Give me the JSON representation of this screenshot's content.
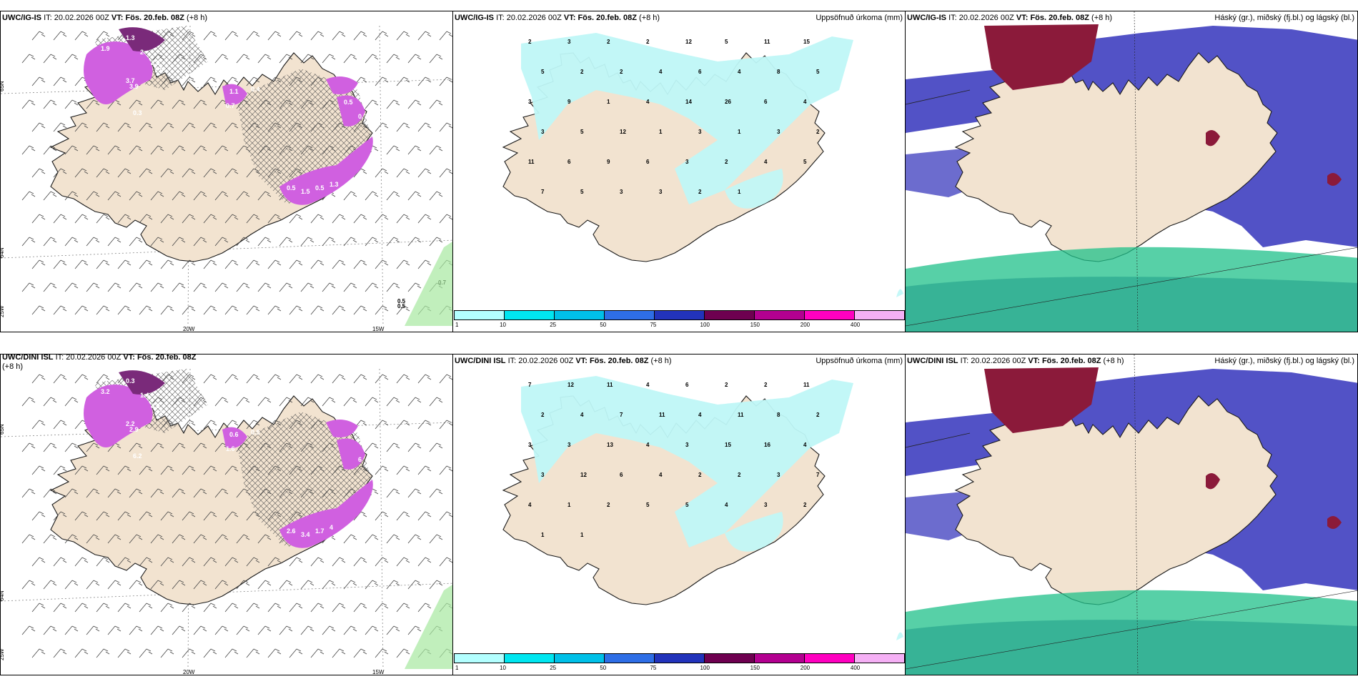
{
  "panels": [
    {
      "model": "UWC/IG-IS",
      "it_label": "IT:",
      "it": "20.02.2026 00Z",
      "vt_label": "VT:",
      "vt": "Fös. 20.feb. 08Z",
      "lead": "(+8 h)",
      "lat_labels": [
        "65N",
        "64N",
        "25W"
      ],
      "lon_labels": [
        "20W",
        "15W"
      ],
      "sea_values": [
        "0.7",
        "0.5",
        "0.5"
      ],
      "cloud_values": [
        "1.3",
        "1.9",
        "2",
        "2.2",
        "1.9",
        "3.7",
        "3.9",
        "0.3",
        "1.1",
        "0.7",
        "0.4",
        "0.5",
        "1.5",
        "0.5",
        "1.3",
        "0.7",
        "0.5"
      ]
    },
    {
      "model": "UWC/IG-IS",
      "it_label": "IT:",
      "it": "20.02.2026 00Z",
      "vt_label": "VT:",
      "vt": "Fös. 20.feb. 08Z",
      "lead": "(+8 h)",
      "field": "Uppsöfnuð úrkoma (mm)",
      "precip_values": [
        "2",
        "3",
        "2",
        "2",
        "12",
        "5",
        "11",
        "15",
        "5",
        "2",
        "2",
        "4",
        "6",
        "4",
        "8",
        "5",
        "3",
        "9",
        "1",
        "4",
        "14",
        "26",
        "6",
        "4",
        "3",
        "5",
        "12",
        "1",
        "3",
        "1",
        "3",
        "2",
        "11",
        "6",
        "9",
        "6",
        "3",
        "2",
        "4",
        "5",
        "7",
        "5",
        "3",
        "3",
        "2",
        "1"
      ]
    },
    {
      "model": "UWC/IG-IS",
      "it_label": "IT:",
      "it": "20.02.2026 00Z",
      "vt_label": "VT:",
      "vt": "Fös. 20.feb. 08Z",
      "lead": "(+8 h)",
      "field": "Háský (gr.), miðský (fj.bl.) og lágský (bl.)"
    },
    {
      "model": "UWC/DINI ISL",
      "it_label": "IT:",
      "it": "20.02.2026 00Z",
      "vt_label": "VT:",
      "vt": "Fös. 20.feb. 08Z",
      "lead": "(+8 h)",
      "lat_labels": [
        "65N",
        "64N",
        "25W"
      ],
      "lon_labels": [
        "20W",
        "15W"
      ],
      "sea_values": [],
      "cloud_values": [
        "0.3",
        "3.2",
        "1.4",
        "3.2",
        "4.2",
        "2.2",
        "2.9",
        "6.2",
        "0.6",
        "1.6",
        "0.5",
        "2.6",
        "3.4",
        "1.7",
        "4",
        "6"
      ]
    },
    {
      "model": "UWC/DINI ISL",
      "it_label": "IT:",
      "it": "20.02.2026 00Z",
      "vt_label": "VT:",
      "vt": "Fös. 20.feb. 08Z",
      "lead": "(+8 h)",
      "field": "Uppsöfnuð úrkoma (mm)",
      "precip_values": [
        "7",
        "12",
        "11",
        "4",
        "6",
        "2",
        "2",
        "11",
        "2",
        "4",
        "7",
        "11",
        "4",
        "11",
        "8",
        "2",
        "3",
        "3",
        "13",
        "4",
        "3",
        "15",
        "16",
        "4",
        "3",
        "12",
        "6",
        "4",
        "2",
        "2",
        "3",
        "7",
        "4",
        "1",
        "2",
        "5",
        "5",
        "4",
        "3",
        "2",
        "1",
        "1"
      ]
    },
    {
      "model": "UWC/DINI ISL",
      "it_label": "IT:",
      "it": "20.02.2026 00Z",
      "vt_label": "VT:",
      "vt": "Fös. 20.feb. 08Z",
      "lead": "(+8 h)",
      "field": "Háský (gr.), miðský (fj.bl.) og lágský (bl.)"
    }
  ],
  "colorbar": {
    "ticks": [
      "1",
      "10",
      "25",
      "50",
      "75",
      "100",
      "150",
      "200",
      "400"
    ],
    "colors": [
      "#b3ffff",
      "#00e6f0",
      "#00c0e8",
      "#2e6ee6",
      "#2233bb",
      "#6e0050",
      "#b30090",
      "#ff00c0",
      "#f5b0f5"
    ]
  },
  "legend_colors": {
    "land": "#f2e3d0",
    "precip": "#bff7f7",
    "cloud_high": "#8b1a3a",
    "cloud_mid": "#5252c6",
    "cloud_low": "#1fc08a",
    "snow": "#d060e0"
  }
}
